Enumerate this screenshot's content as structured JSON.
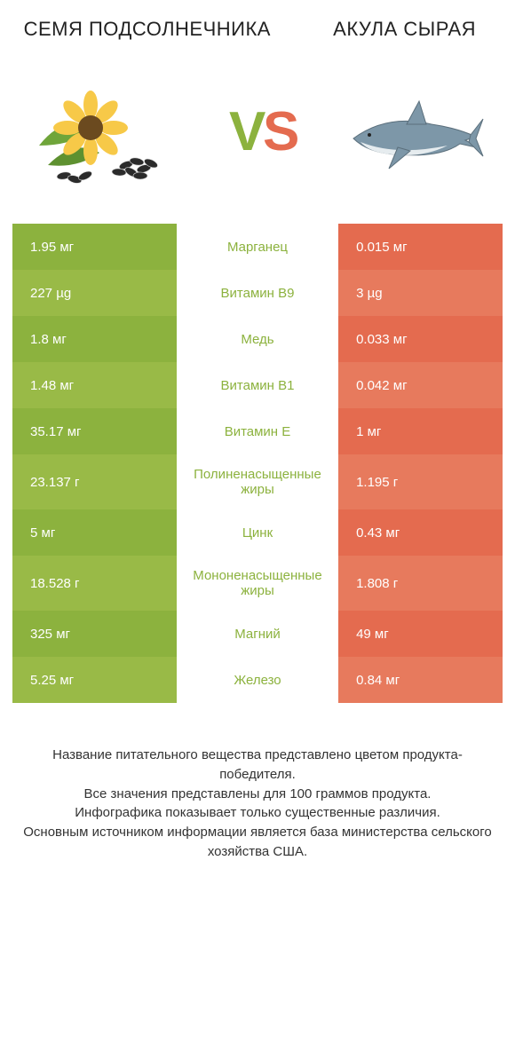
{
  "header": {
    "left_title": "СЕМЯ ПОДСОЛНЕЧНИКА",
    "right_title": "АКУЛА СЫРАЯ",
    "vs_v_color": "#8cb23e",
    "vs_s_color": "#e46b4f"
  },
  "colors": {
    "left_a": "#8cb23e",
    "left_b": "#99ba47",
    "right_a": "#e46b4f",
    "right_b": "#e77a5d",
    "mid_green": "#8cb23e",
    "mid_orange": "#e46b4f"
  },
  "rows": [
    {
      "left": "1.95 мг",
      "mid": "Марганец",
      "right": "0.015 мг",
      "winner": "left",
      "tall": false
    },
    {
      "left": "227 µg",
      "mid": "Витамин B9",
      "right": "3 µg",
      "winner": "left",
      "tall": false
    },
    {
      "left": "1.8 мг",
      "mid": "Медь",
      "right": "0.033 мг",
      "winner": "left",
      "tall": false
    },
    {
      "left": "1.48 мг",
      "mid": "Витамин B1",
      "right": "0.042 мг",
      "winner": "left",
      "tall": false
    },
    {
      "left": "35.17 мг",
      "mid": "Витамин E",
      "right": "1 мг",
      "winner": "left",
      "tall": false
    },
    {
      "left": "23.137 г",
      "mid": "Полиненасыщенные жиры",
      "right": "1.195 г",
      "winner": "left",
      "tall": true
    },
    {
      "left": "5 мг",
      "mid": "Цинк",
      "right": "0.43 мг",
      "winner": "left",
      "tall": false
    },
    {
      "left": "18.528 г",
      "mid": "Мононенасыщенные жиры",
      "right": "1.808 г",
      "winner": "left",
      "tall": true
    },
    {
      "left": "325 мг",
      "mid": "Магний",
      "right": "49 мг",
      "winner": "left",
      "tall": false
    },
    {
      "left": "5.25 мг",
      "mid": "Железо",
      "right": "0.84 мг",
      "winner": "left",
      "tall": false
    }
  ],
  "footer": {
    "line1": "Название питательного вещества представлено цветом продукта-победителя.",
    "line2": "Все значения представлены для 100 граммов продукта.",
    "line3": "Инфографика показывает только существенные различия.",
    "line4": "Основным источником информации является база министерства сельского хозяйства США."
  },
  "svg": {
    "sunflower": {
      "petal_color": "#f7c948",
      "center_color": "#6b4a1f",
      "leaf_color": "#6fa53a",
      "seed_color": "#2b2b2b",
      "seed_stripe": "#d9d9d9"
    },
    "shark": {
      "body_top": "#7d97a8",
      "body_bottom": "#e6ecef",
      "outline": "#5b6f7c"
    }
  }
}
